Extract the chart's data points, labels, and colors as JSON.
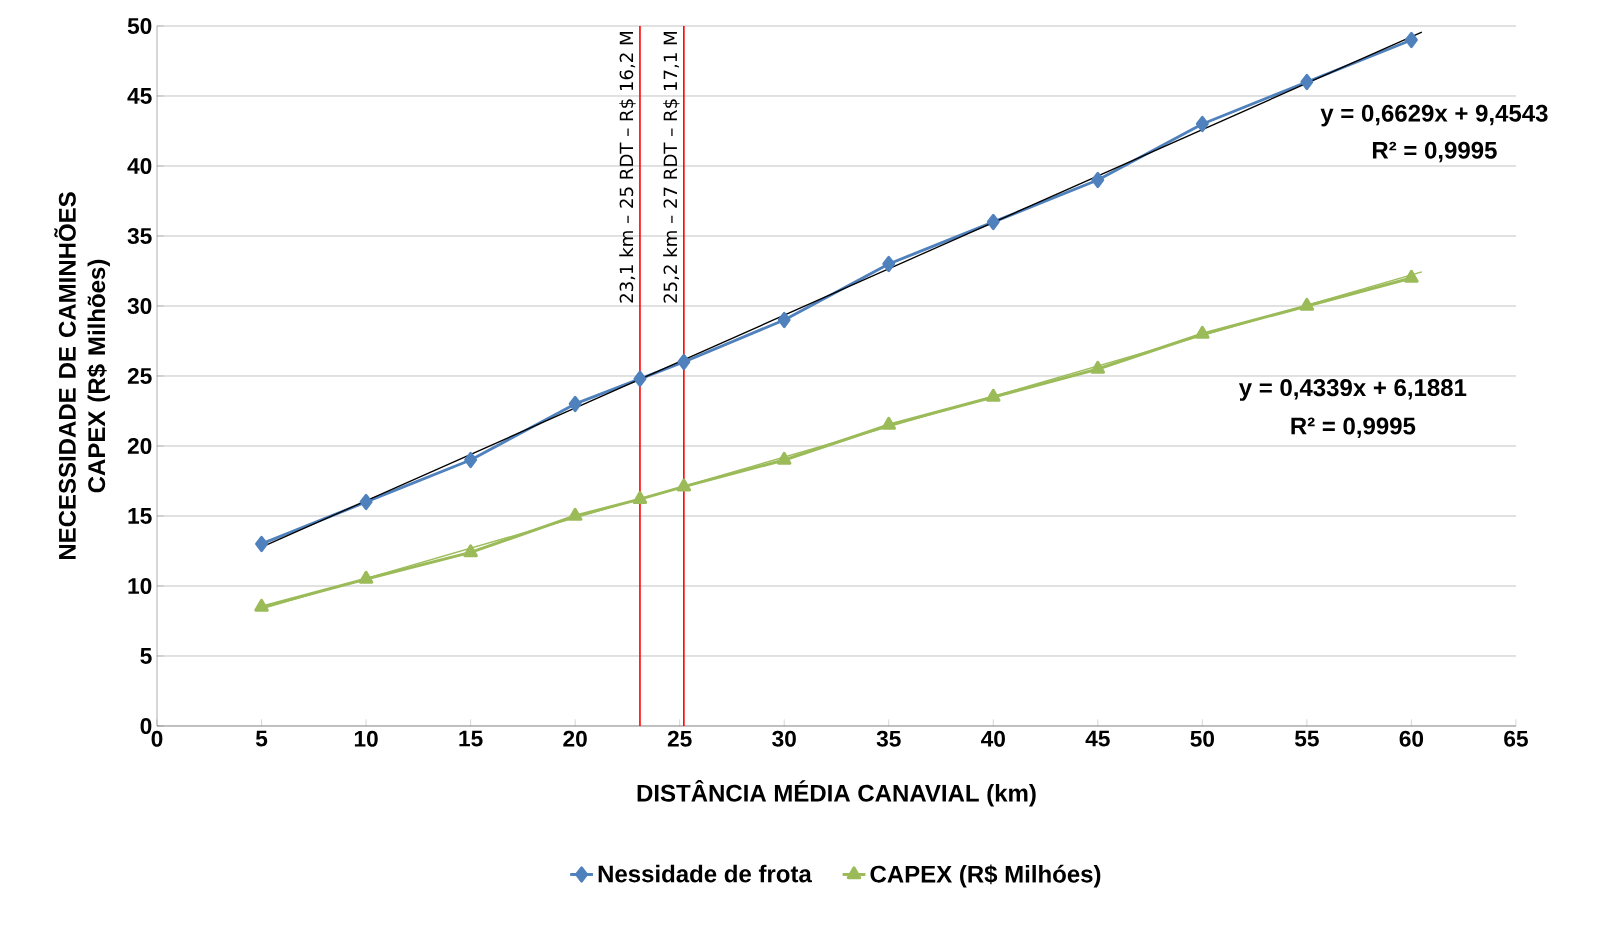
{
  "chart_data": {
    "type": "line",
    "xlabel": "DISTÂNCIA MÉDIA CANAVIAL (km)",
    "ylabel": "NECESSIDADE DE CAMINHÕES CAPEX (R$ Milhões)",
    "xlim": [
      0,
      65
    ],
    "xticks": [
      0,
      5,
      10,
      15,
      20,
      25,
      30,
      35,
      40,
      45,
      50,
      55,
      60,
      65
    ],
    "ylim": [
      0,
      50
    ],
    "yticks": [
      0,
      5,
      10,
      15,
      20,
      25,
      30,
      35,
      40,
      45,
      50
    ],
    "grid": "y",
    "legend": "bottom",
    "series": [
      {
        "name": "Nessidade de frota",
        "color": "#4f81bd",
        "marker": "diamond",
        "x": [
          5,
          10,
          15,
          20,
          23.1,
          25.2,
          30,
          35,
          40,
          45,
          50,
          55,
          60
        ],
        "values": [
          13,
          16,
          19,
          23,
          24.8,
          26,
          29,
          33,
          36,
          39,
          43,
          46,
          49
        ]
      },
      {
        "name": "CAPEX (R$ Milhóes)",
        "color": "#9bbb59",
        "marker": "triangle",
        "x": [
          5,
          10,
          15,
          20,
          23.1,
          25.2,
          30,
          35,
          40,
          45,
          50,
          55,
          60
        ],
        "values": [
          8.5,
          10.5,
          12.4,
          15,
          16.2,
          17.1,
          19,
          21.5,
          23.5,
          25.5,
          28,
          30,
          32
        ]
      },
      {
        "type": "line",
        "color": "#000000",
        "marker": "none",
        "x": [
          5,
          60.5
        ],
        "values": [
          12.77,
          49.56
        ]
      },
      {
        "type": "line",
        "color": "#9bbb59",
        "marker": "none",
        "x": [
          5,
          60.5
        ],
        "values": [
          8.36,
          32.44
        ]
      }
    ],
    "ref_lines": [
      {
        "axis": "x",
        "value": 23.1,
        "label": "23,1 km – 25 RDT – R$ 16,2 M",
        "color": "#ff0000"
      },
      {
        "axis": "x",
        "value": 25.2,
        "label": "25,2 km – 27 RDT – R$ 17,1 M",
        "color": "#ff0000"
      }
    ],
    "annotations": [
      "y = 0,6629x + 9,4543",
      "R² = 0,9995",
      "y = 0,4339x + 6,1881",
      "R² = 0,9995"
    ]
  }
}
